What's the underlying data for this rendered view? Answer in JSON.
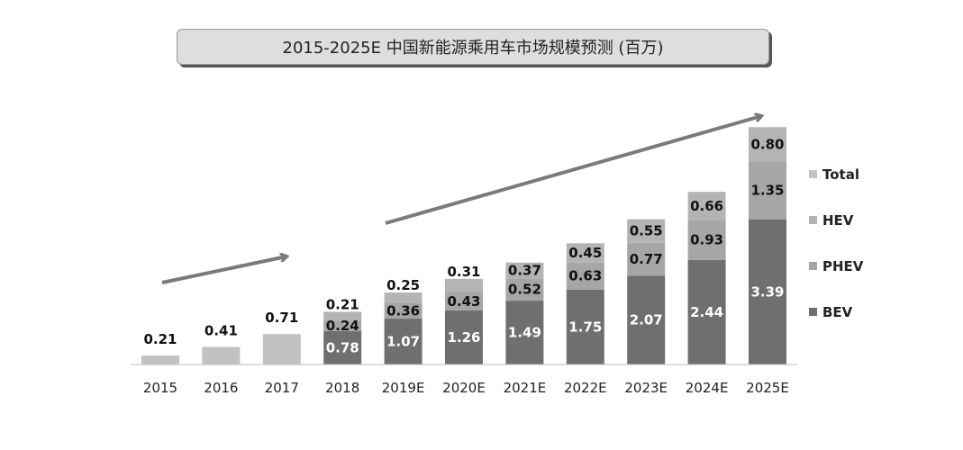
{
  "colors": {
    "total": "#c2c2c2",
    "hev": "#b4b4b4",
    "phev": "#a6a6a6",
    "bev": "#6f6f6f",
    "arrow": "#7a7a7a",
    "label_dark": "#111111",
    "label_light": "#ffffff"
  },
  "chart_data": {
    "type": "bar",
    "stacked": true,
    "title": "2015-2025E 中国新能源乘用车市场规模预测 (百万)",
    "categories": [
      "2015",
      "2016",
      "2017",
      "2018",
      "2019E",
      "2020E",
      "2021E",
      "2022E",
      "2023E",
      "2024E",
      "2025E"
    ],
    "series": [
      {
        "name": "Total",
        "values": [
          0.21,
          0.41,
          0.71,
          null,
          null,
          null,
          null,
          null,
          null,
          null,
          null
        ]
      },
      {
        "name": "HEV",
        "values": [
          null,
          null,
          null,
          0.21,
          0.25,
          0.31,
          0.37,
          0.45,
          0.55,
          0.66,
          0.8
        ]
      },
      {
        "name": "PHEV",
        "values": [
          null,
          null,
          null,
          0.24,
          0.36,
          0.43,
          0.52,
          0.63,
          0.77,
          0.93,
          1.35
        ]
      },
      {
        "name": "BEV",
        "values": [
          null,
          null,
          null,
          0.78,
          1.07,
          1.26,
          1.49,
          1.75,
          2.07,
          2.44,
          3.39
        ]
      }
    ],
    "legend": [
      "Total",
      "HEV",
      "PHEV",
      "BEV"
    ],
    "legend_position": "right",
    "grid": false,
    "ylim": [
      0,
      5.6
    ]
  }
}
